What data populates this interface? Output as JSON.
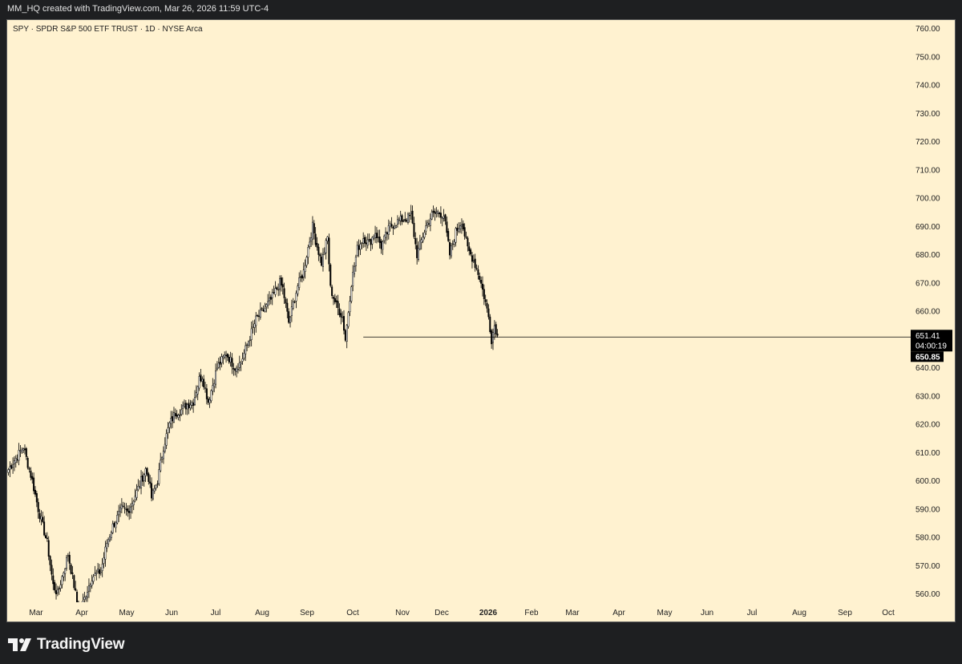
{
  "header": {
    "credit": "MM_HQ created with TradingView.com, Mar 26, 2026 11:59 UTC-4"
  },
  "chart_header": {
    "symbol_line": "SPY · SPDR S&P 500 ETF TRUST · 1D · NYSE Arca"
  },
  "footer": {
    "brand_name": "TradingView"
  },
  "colors": {
    "background": "#fff2d0",
    "candle_up": "#ffffff",
    "candle_down": "#000000",
    "frame": "#1e1f21"
  },
  "chart_data": {
    "type": "candlestick",
    "symbol": "SPY",
    "name": "SPDR S&P 500 ETF TRUST",
    "interval": "1D",
    "exchange": "NYSE Arca",
    "ylim": [
      555,
      762
    ],
    "y_ticks": [
      "760.00",
      "750.00",
      "740.00",
      "730.00",
      "720.00",
      "710.00",
      "700.00",
      "690.00",
      "680.00",
      "670.00",
      "660.00",
      "650.00",
      "640.00",
      "630.00",
      "620.00",
      "610.00",
      "600.00",
      "590.00",
      "580.00",
      "570.00",
      "560.00"
    ],
    "x_ticks": [
      {
        "label": "Mar",
        "bold": false
      },
      {
        "label": "Apr",
        "bold": false
      },
      {
        "label": "May",
        "bold": false
      },
      {
        "label": "Jun",
        "bold": false
      },
      {
        "label": "Jul",
        "bold": false
      },
      {
        "label": "Aug",
        "bold": false
      },
      {
        "label": "Sep",
        "bold": false
      },
      {
        "label": "Oct",
        "bold": false
      },
      {
        "label": "Nov",
        "bold": false
      },
      {
        "label": "Dec",
        "bold": false
      },
      {
        "label": "2026",
        "bold": true
      },
      {
        "label": "Feb",
        "bold": false
      },
      {
        "label": "Mar",
        "bold": false
      },
      {
        "label": "Apr",
        "bold": false
      },
      {
        "label": "May",
        "bold": false
      },
      {
        "label": "Jun",
        "bold": false
      },
      {
        "label": "Jul",
        "bold": false
      },
      {
        "label": "Aug",
        "bold": false
      },
      {
        "label": "Sep",
        "bold": false
      },
      {
        "label": "Oct",
        "bold": false
      }
    ],
    "anchor_points": [
      [
        0,
        604
      ],
      [
        10,
        612
      ],
      [
        16,
        600
      ],
      [
        20,
        590
      ],
      [
        26,
        578
      ],
      [
        30,
        563
      ],
      [
        33,
        560
      ],
      [
        36,
        566
      ],
      [
        40,
        574
      ],
      [
        44,
        563
      ],
      [
        46,
        557
      ],
      [
        49,
        555
      ],
      [
        52,
        560
      ],
      [
        56,
        566
      ],
      [
        62,
        568
      ],
      [
        66,
        578
      ],
      [
        70,
        584
      ],
      [
        76,
        590
      ],
      [
        80,
        589
      ],
      [
        86,
        596
      ],
      [
        92,
        604
      ],
      [
        94,
        601
      ],
      [
        96,
        594
      ],
      [
        100,
        600
      ],
      [
        104,
        612
      ],
      [
        108,
        620
      ],
      [
        112,
        624
      ],
      [
        116,
        625
      ],
      [
        120,
        627
      ],
      [
        124,
        628
      ],
      [
        128,
        636
      ],
      [
        130,
        637
      ],
      [
        134,
        628
      ],
      [
        140,
        640
      ],
      [
        146,
        645
      ],
      [
        152,
        640
      ],
      [
        156,
        642
      ],
      [
        160,
        648
      ],
      [
        166,
        657
      ],
      [
        172,
        661
      ],
      [
        176,
        664
      ],
      [
        182,
        670
      ],
      [
        184,
        668
      ],
      [
        188,
        656
      ],
      [
        194,
        669
      ],
      [
        198,
        674
      ],
      [
        200,
        680
      ],
      [
        204,
        690
      ],
      [
        206,
        685
      ],
      [
        210,
        677
      ],
      [
        214,
        686
      ],
      [
        216,
        668
      ],
      [
        220,
        662
      ],
      [
        224,
        658
      ],
      [
        226,
        650
      ],
      [
        230,
        670
      ],
      [
        234,
        682
      ],
      [
        238,
        686
      ],
      [
        242,
        684
      ],
      [
        246,
        688
      ],
      [
        250,
        683
      ],
      [
        256,
        690
      ],
      [
        262,
        692
      ],
      [
        268,
        693
      ],
      [
        270,
        694
      ],
      [
        274,
        680
      ],
      [
        280,
        690
      ],
      [
        284,
        694
      ],
      [
        288,
        695
      ],
      [
        292,
        694
      ],
      [
        296,
        680
      ],
      [
        300,
        688
      ],
      [
        304,
        692
      ],
      [
        308,
        682
      ],
      [
        312,
        678
      ],
      [
        316,
        672
      ],
      [
        320,
        663
      ],
      [
        322,
        658
      ],
      [
        324,
        650
      ],
      [
        326,
        655
      ],
      [
        328,
        652
      ]
    ],
    "last_close": 651.41,
    "reference_level": 650.85,
    "reference_start_index": 238,
    "countdown": "04:00:19"
  }
}
